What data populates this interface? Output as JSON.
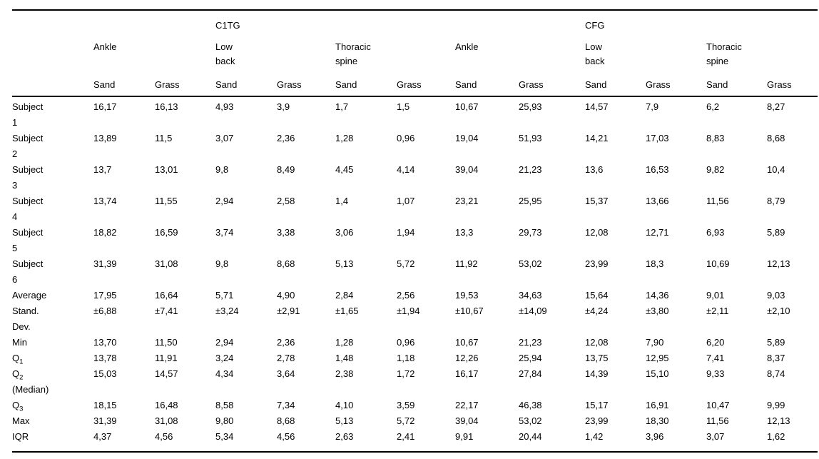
{
  "table": {
    "group_headers": [
      "C1TG",
      "CFG"
    ],
    "section_headers": [
      "Ankle",
      "Low back",
      "Thoracic spine",
      "Ankle",
      "Low back",
      "Thoracic spine"
    ],
    "surface_headers": [
      "Sand",
      "Grass",
      "Sand",
      "Grass",
      "Sand",
      "Grass",
      "Sand",
      "Grass",
      "Sand",
      "Grass",
      "Sand",
      "Grass"
    ],
    "rows": [
      {
        "label": "Subject 1",
        "sub": "",
        "post": "",
        "values": [
          "16,17",
          "16,13",
          "4,93",
          "3,9",
          "1,7",
          "1,5",
          "10,67",
          "25,93",
          "14,57",
          "7,9",
          "6,2",
          "8,27"
        ]
      },
      {
        "label": "Subject 2",
        "sub": "",
        "post": "",
        "values": [
          "13,89",
          "11,5",
          "3,07",
          "2,36",
          "1,28",
          "0,96",
          "19,04",
          "51,93",
          "14,21",
          "17,03",
          "8,83",
          "8,68"
        ]
      },
      {
        "label": "Subject 3",
        "sub": "",
        "post": "",
        "values": [
          "13,7",
          "13,01",
          "9,8",
          "8,49",
          "4,45",
          "4,14",
          "39,04",
          "21,23",
          "13,6",
          "16,53",
          "9,82",
          "10,4"
        ]
      },
      {
        "label": "Subject 4",
        "sub": "",
        "post": "",
        "values": [
          "13,74",
          "11,55",
          "2,94",
          "2,58",
          "1,4",
          "1,07",
          "23,21",
          "25,95",
          "15,37",
          "13,66",
          "11,56",
          "8,79"
        ]
      },
      {
        "label": "Subject 5",
        "sub": "",
        "post": "",
        "values": [
          "18,82",
          "16,59",
          "3,74",
          "3,38",
          "3,06",
          "1,94",
          "13,3",
          "29,73",
          "12,08",
          "12,71",
          "6,93",
          "5,89"
        ]
      },
      {
        "label": "Subject 6",
        "sub": "",
        "post": "",
        "values": [
          "31,39",
          "31,08",
          "9,8",
          "8,68",
          "5,13",
          "5,72",
          "11,92",
          "53,02",
          "23,99",
          "18,3",
          "10,69",
          "12,13"
        ]
      },
      {
        "label": "Average",
        "sub": "",
        "post": "",
        "values": [
          "17,95",
          "16,64",
          "5,71",
          "4,90",
          "2,84",
          "2,56",
          "19,53",
          "34,63",
          "15,64",
          "14,36",
          "9,01",
          "9,03"
        ]
      },
      {
        "label": "Stand. Dev.",
        "sub": "",
        "post": "",
        "values": [
          "±6,88",
          "±7,41",
          "±3,24",
          "±2,91",
          "±1,65",
          "±1,94",
          "±10,67",
          "±14,09",
          "±4,24",
          "±3,80",
          "±2,11",
          "±2,10"
        ]
      },
      {
        "label": "Min",
        "sub": "",
        "post": "",
        "values": [
          "13,70",
          "11,50",
          "2,94",
          "2,36",
          "1,28",
          "0,96",
          "10,67",
          "21,23",
          "12,08",
          "7,90",
          "6,20",
          "5,89"
        ]
      },
      {
        "label": "Q",
        "sub": "1",
        "post": "",
        "values": [
          "13,78",
          "11,91",
          "3,24",
          "2,78",
          "1,48",
          "1,18",
          "12,26",
          "25,94",
          "13,75",
          "12,95",
          "7,41",
          "8,37"
        ]
      },
      {
        "label": "Q",
        "sub": "2",
        "post": "(Median)",
        "values": [
          "15,03",
          "14,57",
          "4,34",
          "3,64",
          "2,38",
          "1,72",
          "16,17",
          "27,84",
          "14,39",
          "15,10",
          "9,33",
          "8,74"
        ]
      },
      {
        "label": "Q",
        "sub": "3",
        "post": "",
        "values": [
          "18,15",
          "16,48",
          "8,58",
          "7,34",
          "4,10",
          "3,59",
          "22,17",
          "46,38",
          "15,17",
          "16,91",
          "10,47",
          "9,99"
        ]
      },
      {
        "label": "Max",
        "sub": "",
        "post": "",
        "values": [
          "31,39",
          "31,08",
          "9,80",
          "8,68",
          "5,13",
          "5,72",
          "39,04",
          "53,02",
          "23,99",
          "18,30",
          "11,56",
          "12,13"
        ]
      },
      {
        "label": "IQR",
        "sub": "",
        "post": "",
        "values": [
          "4,37",
          "4,56",
          "5,34",
          "4,56",
          "2,63",
          "2,41",
          "9,91",
          "20,44",
          "1,42",
          "3,96",
          "3,07",
          "1,62"
        ]
      }
    ]
  }
}
